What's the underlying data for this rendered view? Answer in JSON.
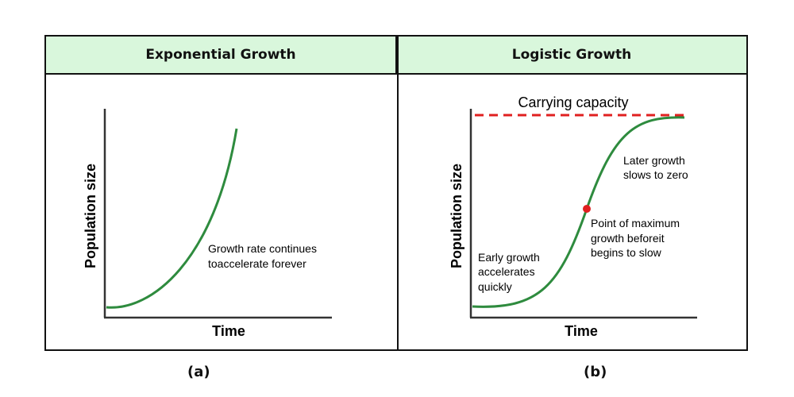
{
  "panels": [
    {
      "header": "Exponential Growth",
      "ylabel": "Population size",
      "xlabel": "Time",
      "annotations": [
        "Growth rate continues",
        "toaccelerate forever"
      ],
      "caption": "(a)"
    },
    {
      "header": "Logistic Growth",
      "ylabel": "Population size",
      "xlabel": "Time",
      "capacity_label": "Carrying capacity",
      "annot_early": [
        "Early growth",
        "accelerates",
        "quickly"
      ],
      "annot_max": [
        "Point of maximum",
        "growth beforeit",
        "begins to slow"
      ],
      "annot_later": [
        "Later growth",
        "slows to zero"
      ],
      "caption": "(b)"
    }
  ],
  "colors": {
    "curve": "#2e8b3e",
    "capacity": "#e02020",
    "header_bg": "#d9f7dc",
    "point": "#e02020"
  }
}
